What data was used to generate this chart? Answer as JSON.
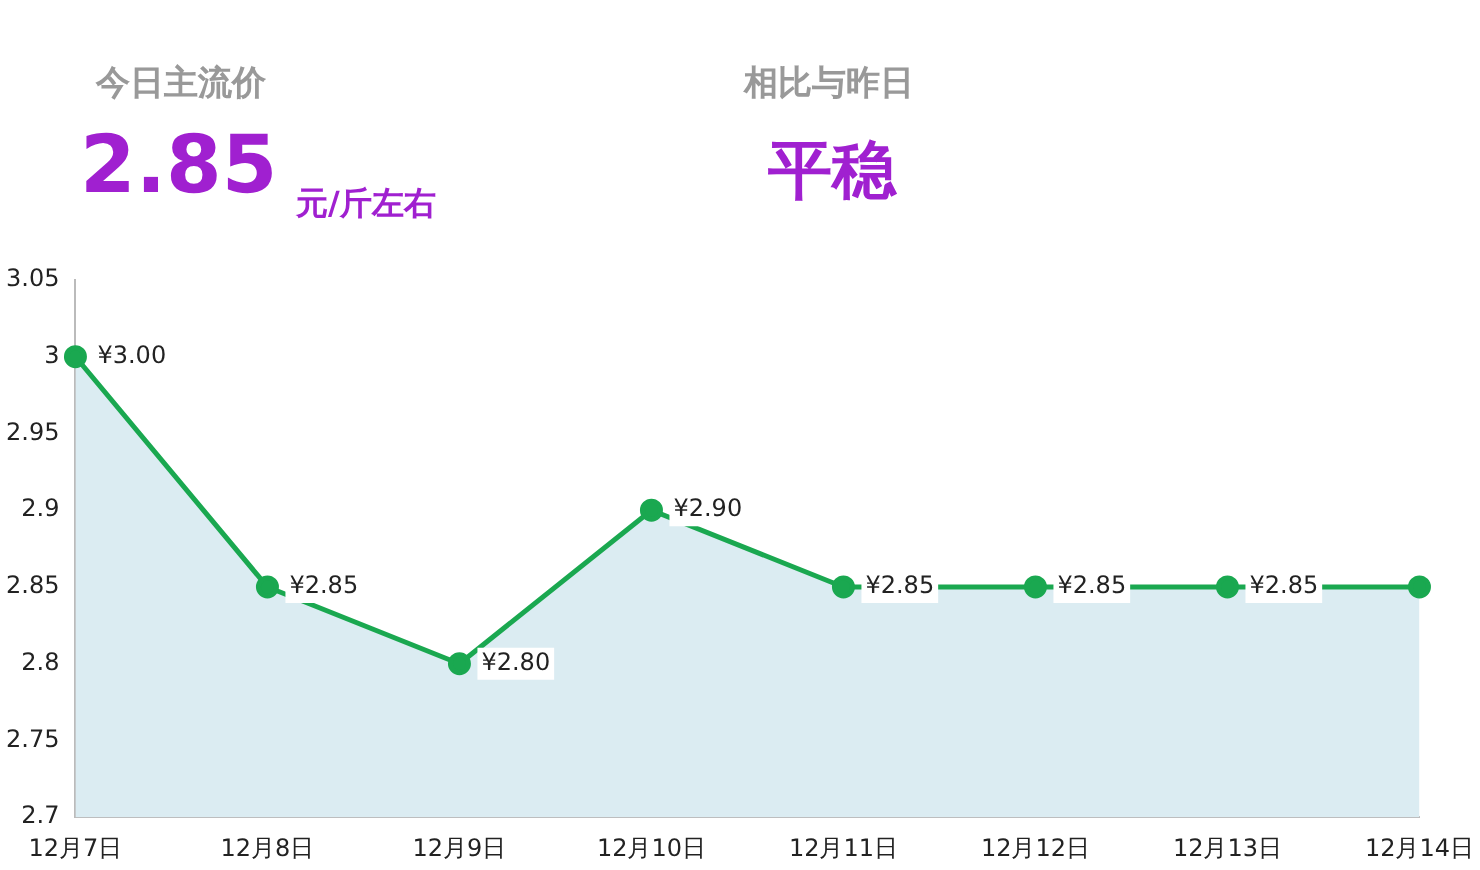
{
  "chart_data": {
    "type": "area",
    "annotations": [
      "今日主流价",
      "2.85",
      "元/斤左右",
      "相比与昨日",
      "平稳"
    ],
    "categories": [
      "12月7日",
      "12月8日",
      "12月9日",
      "12月10日",
      "12月11日",
      "12月12日",
      "12月13日",
      "12月14日"
    ],
    "series": [
      {
        "color": "#1aa850",
        "values": [
          3.0,
          2.85,
          2.8,
          2.9,
          2.85,
          2.85,
          2.85,
          2.85
        ],
        "value_labels": [
          "¥3.00",
          "¥2.85",
          "¥2.80",
          "¥2.90",
          "¥2.85",
          "¥2.85",
          "¥2.85",
          null
        ]
      }
    ],
    "ylim": [
      2.7,
      3.05
    ],
    "yticks": [
      2.7,
      2.75,
      2.8,
      2.85,
      2.9,
      2.95,
      3,
      3.05
    ],
    "grid": false,
    "legend": false,
    "marker": "circle",
    "line_style": "solid"
  }
}
